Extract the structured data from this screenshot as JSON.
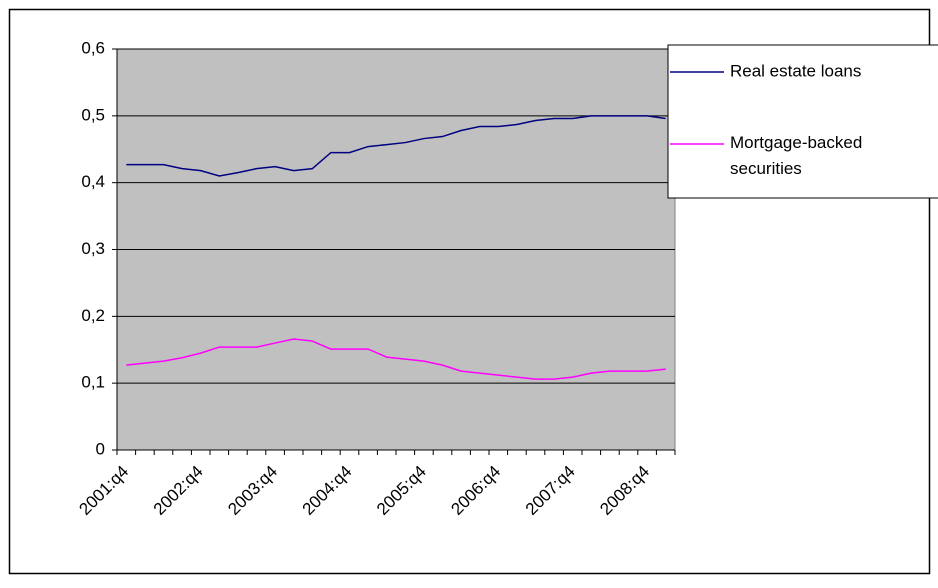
{
  "chart_data": {
    "type": "line",
    "categories": [
      "2001:q4",
      null,
      null,
      null,
      "2002:q4",
      null,
      null,
      null,
      "2003:q4",
      null,
      null,
      null,
      "2004:q4",
      null,
      null,
      null,
      "2005:q4",
      null,
      null,
      null,
      "2006:q4",
      null,
      null,
      null,
      "2007:q4",
      null,
      null,
      null,
      "2008:q4",
      null
    ],
    "series": [
      {
        "name": "Real estate loans",
        "color": "#000080",
        "values": [
          0.427,
          0.427,
          0.427,
          0.421,
          0.418,
          0.41,
          0.415,
          0.421,
          0.424,
          0.418,
          0.421,
          0.445,
          0.445,
          0.454,
          0.457,
          0.46,
          0.466,
          0.469,
          0.478,
          0.484,
          0.484,
          0.487,
          0.493,
          0.496,
          0.496,
          0.5,
          0.5,
          0.5,
          0.5,
          0.496
        ]
      },
      {
        "name": "Mortgage-backed securities",
        "color": "#ff00ff",
        "values": [
          0.127,
          0.13,
          0.133,
          0.138,
          0.145,
          0.154,
          0.154,
          0.154,
          0.16,
          0.166,
          0.163,
          0.151,
          0.151,
          0.151,
          0.139,
          0.136,
          0.133,
          0.127,
          0.118,
          0.115,
          0.112,
          0.109,
          0.106,
          0.106,
          0.109,
          0.115,
          0.118,
          0.118,
          0.118,
          0.121
        ]
      }
    ],
    "ylim": [
      0,
      0.6
    ],
    "yticks": [
      0,
      {
        "value": 0.1,
        "label": "0,1"
      },
      {
        "value": 0.2,
        "label": "0,2"
      },
      {
        "value": 0.3,
        "label": "0,3"
      },
      {
        "value": 0.4,
        "label": "0,4"
      },
      {
        "value": 0.5,
        "label": "0,5"
      },
      {
        "value": 0.6,
        "label": "0,6"
      }
    ],
    "grid": true,
    "plot_background": "#c0c0c0",
    "legend_position": "right"
  }
}
